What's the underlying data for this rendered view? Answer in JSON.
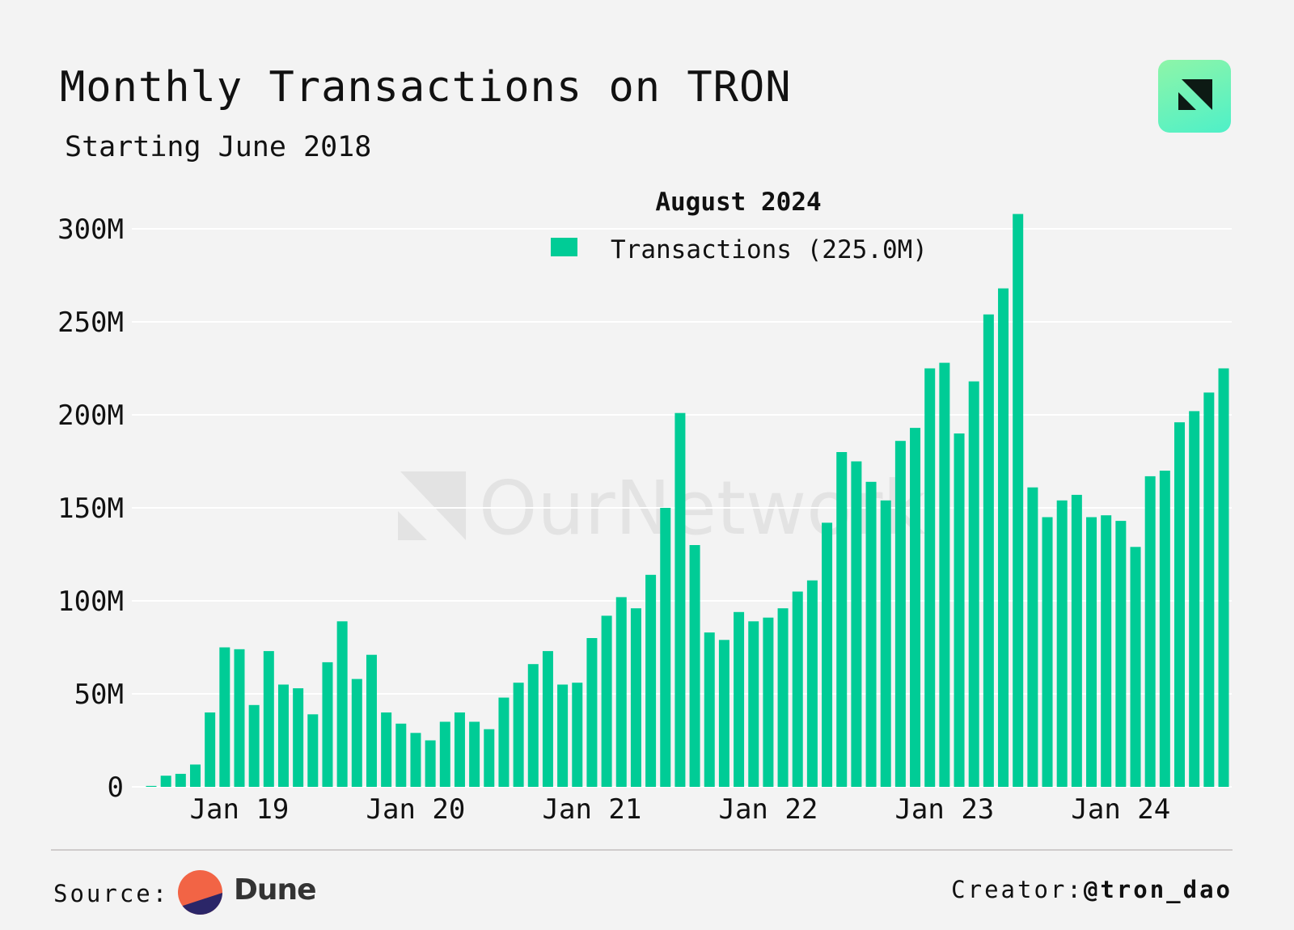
{
  "header": {
    "title": "Monthly Transactions on TRON",
    "subtitle": "Starting June 2018"
  },
  "logos": {
    "top_right": "OurNetwork logo",
    "watermark": "OurNetwork",
    "source_brand": "Dune"
  },
  "footer": {
    "source_label": "Source:",
    "source_name": "Dune",
    "creator_label": "Creator:",
    "creator_handle": "@tron_dao"
  },
  "colors": {
    "bar": "#00cc96",
    "background": "#f3f3f3",
    "dune_orange": "#f26445",
    "dune_navy": "#2b2668"
  },
  "chart_data": {
    "type": "bar",
    "title": "Monthly Transactions on TRON",
    "subtitle": "Starting June 2018",
    "xlabel": "",
    "ylabel": "",
    "ylim": [
      0,
      300000000
    ],
    "grid": true,
    "legend": {
      "position": "top-center",
      "title": "August 2024",
      "entries": [
        "Transactions (225.0M)"
      ]
    },
    "y_ticks": [
      "0",
      "50M",
      "100M",
      "150M",
      "200M",
      "250M",
      "300M"
    ],
    "x_ticks": [
      {
        "label": "Jan 19",
        "month": "2019-01"
      },
      {
        "label": "Jan 20",
        "month": "2020-01"
      },
      {
        "label": "Jan 21",
        "month": "2021-01"
      },
      {
        "label": "Jan 22",
        "month": "2022-01"
      },
      {
        "label": "Jan 23",
        "month": "2023-01"
      },
      {
        "label": "Jan 24",
        "month": "2024-01"
      }
    ],
    "series": [
      {
        "name": "Transactions",
        "start_month": "2018-07",
        "values_millions": [
          0.5,
          6,
          7,
          12,
          40,
          75,
          74,
          44,
          73,
          55,
          53,
          39,
          67,
          89,
          58,
          71,
          40,
          34,
          29,
          25,
          35,
          40,
          35,
          31,
          48,
          56,
          66,
          73,
          55,
          56,
          80,
          92,
          102,
          96,
          114,
          150,
          201,
          130,
          83,
          79,
          94,
          89,
          91,
          96,
          105,
          111,
          142,
          180,
          175,
          164,
          154,
          186,
          193,
          225,
          228,
          190,
          218,
          254,
          268,
          308,
          161,
          145,
          154,
          157,
          145,
          146,
          143,
          129,
          167,
          170,
          196,
          202,
          212,
          225
        ]
      }
    ]
  }
}
